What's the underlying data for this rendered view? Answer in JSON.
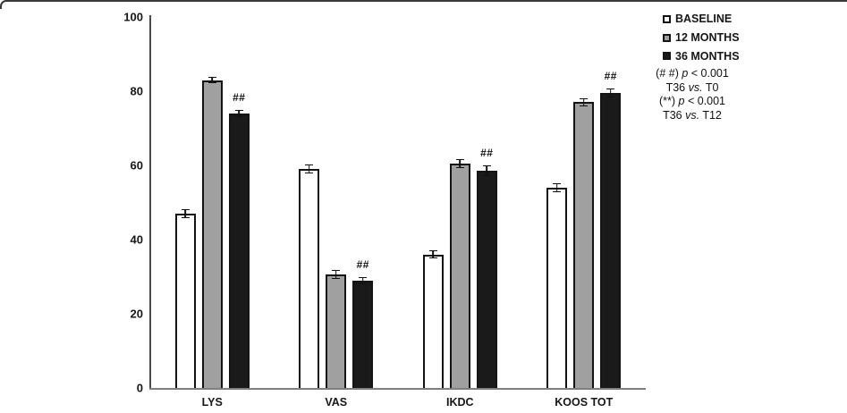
{
  "figure": {
    "background": "#ffffff",
    "top_rule_color": "#3a3a3a"
  },
  "legend": {
    "items": [
      {
        "label": "BASELINE",
        "swatch_color": "#ffffff"
      },
      {
        "label": "12 MONTHS",
        "swatch_color": "#a0a0a0"
      },
      {
        "label": "36 MONTHS",
        "swatch_color": "#1a1a1a"
      }
    ],
    "annotation_lines": [
      {
        "pre": "(# #) ",
        "em": "p",
        "post": " < 0.001"
      },
      {
        "pre": "T36  ",
        "em": "vs.",
        "post": " T0"
      },
      {
        "pre": "(**) ",
        "em": "p",
        "post": " < 0.001"
      },
      {
        "pre": "T36  ",
        "em": "vs.",
        "post": " T12"
      }
    ]
  },
  "chart_data": {
    "type": "bar",
    "title": "",
    "xlabel": "",
    "ylabel": "",
    "categories": [
      "LYS",
      "VAS",
      "IKDC",
      "KOOS TOT"
    ],
    "series": [
      {
        "name": "BASELINE",
        "fill": "#ffffff",
        "values": [
          47,
          59,
          36,
          54
        ],
        "errors": [
          1.2,
          1.2,
          1.0,
          1.2
        ]
      },
      {
        "name": "12 MONTHS",
        "fill": "#a0a0a0",
        "values": [
          83,
          30.5,
          60.5,
          77
        ],
        "errors": [
          0.8,
          1.2,
          1.2,
          1.0
        ]
      },
      {
        "name": "36 MONTHS",
        "fill": "#1a1a1a",
        "values": [
          74,
          29,
          58.5,
          79.5
        ],
        "errors": [
          1.0,
          1.0,
          1.4,
          1.2
        ],
        "sig_marker": "##"
      }
    ],
    "ylim": [
      0,
      100
    ],
    "yticks": [
      0,
      20,
      40,
      60,
      80,
      100
    ],
    "error_bars": true,
    "grid": false,
    "legend_position": "top-right",
    "annotations": [
      "(# #) p < 0.001 T36 vs. T0",
      "(**) p < 0.001 T36 vs. T12"
    ]
  }
}
